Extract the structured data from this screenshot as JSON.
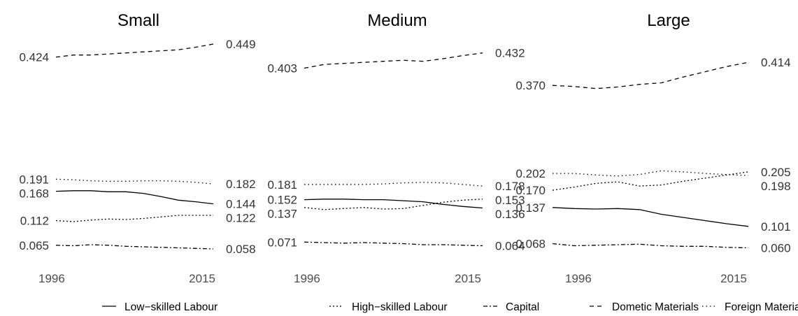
{
  "chart_data": [
    {
      "type": "line",
      "title": "Small",
      "x_range": [
        1996,
        2015
      ],
      "x_ticks": [
        "1996",
        "2015"
      ],
      "ylim": [
        0,
        0.5
      ],
      "grid": false,
      "series": [
        {
          "name": "Low-skilled Labour",
          "key": "low",
          "values": [
            0.168,
            0.169,
            0.169,
            0.167,
            0.167,
            0.164,
            0.158,
            0.151,
            0.148,
            0.144
          ],
          "start_label": "0.168",
          "end_label": "0.144"
        },
        {
          "name": "High-skilled Labour",
          "key": "high",
          "values": [
            0.112,
            0.11,
            0.113,
            0.115,
            0.114,
            0.116,
            0.119,
            0.122,
            0.122,
            0.122
          ],
          "start_label": "0.112",
          "end_label": "0.122"
        },
        {
          "name": "Capital",
          "key": "cap",
          "values": [
            0.065,
            0.064,
            0.066,
            0.065,
            0.063,
            0.062,
            0.061,
            0.06,
            0.059,
            0.058
          ],
          "start_label": "0.065",
          "end_label": "0.058"
        },
        {
          "name": "Dometic Materials",
          "key": "dom",
          "values": [
            0.424,
            0.428,
            0.428,
            0.43,
            0.432,
            0.434,
            0.436,
            0.438,
            0.443,
            0.449
          ],
          "start_label": "0.424",
          "end_label": "0.449"
        },
        {
          "name": "Foreign Materials",
          "key": "for",
          "values": [
            0.191,
            0.19,
            0.188,
            0.187,
            0.187,
            0.188,
            0.188,
            0.187,
            0.185,
            0.182
          ],
          "start_label": "0.191",
          "end_label": "0.182"
        }
      ]
    },
    {
      "type": "line",
      "title": "Medium",
      "x_range": [
        1996,
        2015
      ],
      "x_ticks": [
        "1996",
        "2015"
      ],
      "ylim": [
        0,
        0.5
      ],
      "grid": false,
      "series": [
        {
          "name": "Low-skilled Labour",
          "key": "low",
          "values": [
            0.152,
            0.153,
            0.153,
            0.152,
            0.152,
            0.15,
            0.148,
            0.143,
            0.139,
            0.136
          ],
          "start_label": "0.152",
          "end_label": "0.136"
        },
        {
          "name": "High-skilled Labour",
          "key": "high",
          "values": [
            0.137,
            0.133,
            0.135,
            0.137,
            0.134,
            0.135,
            0.141,
            0.147,
            0.151,
            0.153
          ],
          "start_label": "0.137",
          "end_label": "0.153"
        },
        {
          "name": "Capital",
          "key": "cap",
          "values": [
            0.071,
            0.07,
            0.069,
            0.07,
            0.069,
            0.068,
            0.066,
            0.066,
            0.065,
            0.064
          ],
          "start_label": "0.071",
          "end_label": "0.064"
        },
        {
          "name": "Dometic Materials",
          "key": "dom",
          "values": [
            0.403,
            0.41,
            0.412,
            0.414,
            0.416,
            0.418,
            0.416,
            0.421,
            0.427,
            0.432
          ],
          "start_label": "0.403",
          "end_label": "0.432"
        },
        {
          "name": "Foreign Materials",
          "key": "for",
          "values": [
            0.181,
            0.181,
            0.181,
            0.181,
            0.182,
            0.184,
            0.185,
            0.184,
            0.181,
            0.178
          ],
          "start_label": "0.181",
          "end_label": "0.178"
        }
      ]
    },
    {
      "type": "line",
      "title": "Large",
      "x_range": [
        1996,
        2015
      ],
      "x_ticks": [
        "1996",
        "2015"
      ],
      "ylim": [
        0,
        0.5
      ],
      "grid": false,
      "series": [
        {
          "name": "Low-skilled Labour",
          "key": "low",
          "values": [
            0.137,
            0.135,
            0.134,
            0.135,
            0.133,
            0.124,
            0.118,
            0.112,
            0.106,
            0.101
          ],
          "start_label": "0.137",
          "end_label": "0.101"
        },
        {
          "name": "High-skilled Labour",
          "key": "high",
          "values": [
            0.17,
            0.176,
            0.183,
            0.186,
            0.178,
            0.18,
            0.187,
            0.193,
            0.199,
            0.205
          ],
          "start_label": "0.170",
          "end_label": "0.205"
        },
        {
          "name": "Capital",
          "key": "cap",
          "values": [
            0.068,
            0.064,
            0.065,
            0.066,
            0.067,
            0.064,
            0.063,
            0.063,
            0.061,
            0.06
          ],
          "start_label": "0.068",
          "end_label": "0.060"
        },
        {
          "name": "Dometic Materials",
          "key": "dom",
          "values": [
            0.37,
            0.368,
            0.364,
            0.367,
            0.372,
            0.375,
            0.386,
            0.396,
            0.406,
            0.414
          ],
          "start_label": "0.370",
          "end_label": "0.414"
        },
        {
          "name": "Foreign Materials",
          "key": "for",
          "values": [
            0.202,
            0.202,
            0.199,
            0.197,
            0.2,
            0.207,
            0.205,
            0.202,
            0.2,
            0.198
          ],
          "start_label": "0.202",
          "end_label": "0.198"
        }
      ]
    }
  ],
  "legend": {
    "position": "bottom",
    "items": [
      {
        "key": "low",
        "label": "Low−skilled Labour"
      },
      {
        "key": "high",
        "label": "High−skilled Labour"
      },
      {
        "key": "cap",
        "label": "Capital"
      },
      {
        "key": "dom",
        "label": "Dometic Materials"
      },
      {
        "key": "for",
        "label": "Foreign Materials"
      }
    ]
  }
}
